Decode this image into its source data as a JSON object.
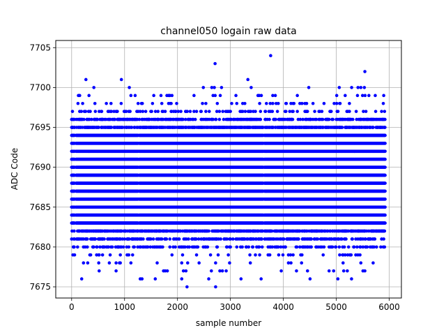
{
  "chart_data": {
    "type": "scatter",
    "title": "channel050 logain raw data",
    "xlabel": "sample number",
    "ylabel": "ADC Code",
    "xlim": [
      -300,
      6230
    ],
    "ylim": [
      7673.6,
      7705.9
    ],
    "xticks": [
      0,
      1000,
      2000,
      3000,
      4000,
      5000,
      6000
    ],
    "yticks": [
      7675,
      7680,
      7685,
      7690,
      7695,
      7700,
      7705
    ],
    "grid": true,
    "marker_color": "#0000ff",
    "n_samples": 5925,
    "dense_band": [
      7683,
      7694
    ],
    "x_gaps": [
      [
        60,
        80
      ],
      [
        1260,
        1275
      ],
      [
        3620,
        3640
      ]
    ],
    "level_density": [
      {
        "y": 7682,
        "p": 0.6
      },
      {
        "y": 7681,
        "p": 0.35
      },
      {
        "y": 7680,
        "p": 0.18
      },
      {
        "y": 7679,
        "p": 0.07
      },
      {
        "y": 7678,
        "p": 0.04
      },
      {
        "y": 7677,
        "p": 0.012
      },
      {
        "y": 7676,
        "p": 0.006
      },
      {
        "y": 7695,
        "p": 0.6
      },
      {
        "y": 7696,
        "p": 0.35
      },
      {
        "y": 7697,
        "p": 0.15
      },
      {
        "y": 7698,
        "p": 0.06
      },
      {
        "y": 7699,
        "p": 0.025
      },
      {
        "y": 7700,
        "p": 0.01
      }
    ],
    "outliers": [
      {
        "x": 2710,
        "y": 7703
      },
      {
        "x": 3760,
        "y": 7704
      },
      {
        "x": 5540,
        "y": 7702
      },
      {
        "x": 3330,
        "y": 7701
      },
      {
        "x": 270,
        "y": 7701
      },
      {
        "x": 940,
        "y": 7701
      },
      {
        "x": 420,
        "y": 7700
      },
      {
        "x": 1090,
        "y": 7700
      },
      {
        "x": 4480,
        "y": 7700
      },
      {
        "x": 5290,
        "y": 7700
      },
      {
        "x": 5410,
        "y": 7700
      },
      {
        "x": 5530,
        "y": 7700
      },
      {
        "x": 2180,
        "y": 7675
      },
      {
        "x": 2720,
        "y": 7675
      },
      {
        "x": 190,
        "y": 7676
      },
      {
        "x": 1330,
        "y": 7676
      },
      {
        "x": 1580,
        "y": 7676
      },
      {
        "x": 2590,
        "y": 7676
      },
      {
        "x": 3580,
        "y": 7676
      },
      {
        "x": 5030,
        "y": 7676
      },
      {
        "x": 520,
        "y": 7677
      },
      {
        "x": 2160,
        "y": 7677
      },
      {
        "x": 2920,
        "y": 7677
      },
      {
        "x": 4950,
        "y": 7677
      },
      {
        "x": 5140,
        "y": 7677
      },
      {
        "x": 5540,
        "y": 7677
      }
    ]
  }
}
